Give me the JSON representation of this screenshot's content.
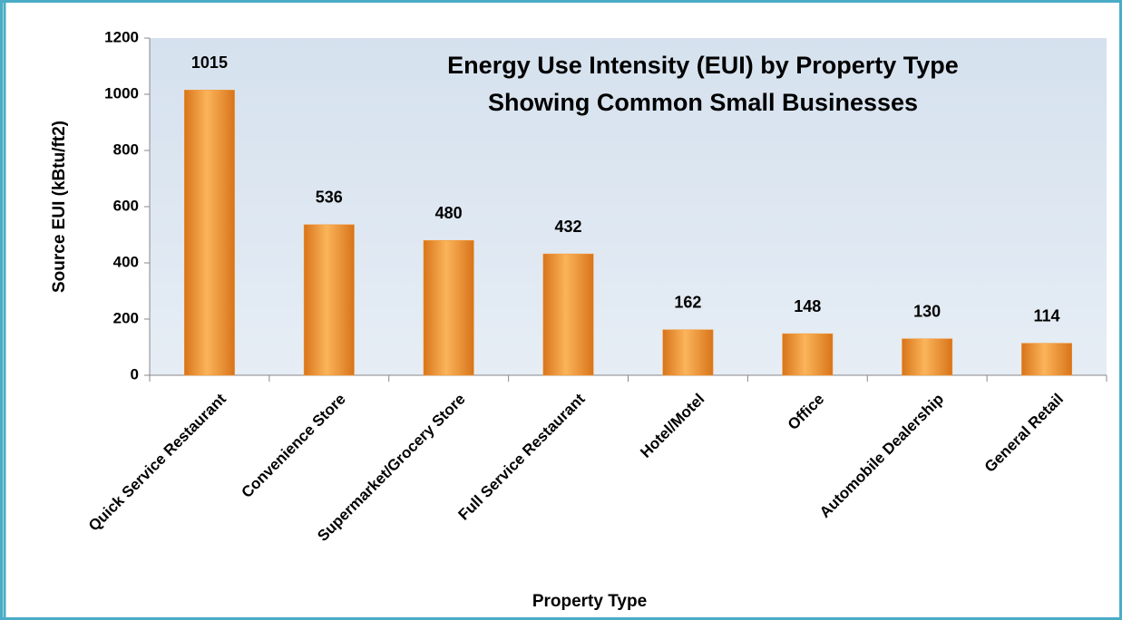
{
  "chart_data": {
    "type": "bar",
    "title": "Energy Use Intensity (EUI) by Property Type",
    "subtitle": "Showing Common Small Businesses",
    "x_label": "Property Type",
    "y_label": "Source EUI (kBtu/ft2)",
    "categories": [
      "Quick Service Restaurant",
      "Convenience Store",
      "Supermarket/Grocery Store",
      "Full Service Restaurant",
      "Hotel/Motel",
      "Office",
      "Automobile Dealership",
      "General Retail"
    ],
    "values": [
      1015,
      536,
      480,
      432,
      162,
      148,
      130,
      114
    ],
    "color": "#f7962f",
    "ylim": [
      0,
      1200
    ],
    "yticks": [
      0,
      200,
      400,
      600,
      800,
      1000,
      1200
    ],
    "grid": false
  }
}
